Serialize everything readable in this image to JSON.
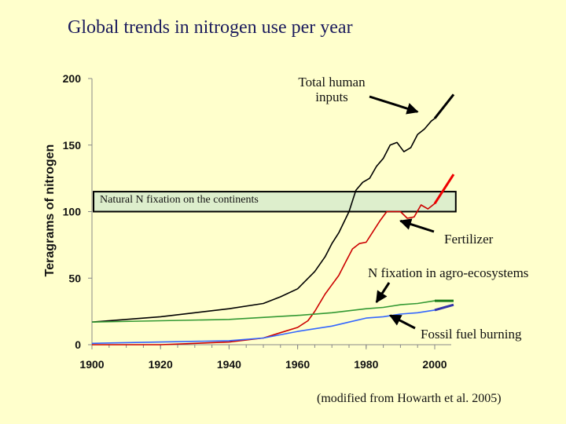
{
  "slide": {
    "title": "Global trends in nitrogen use per year",
    "citation": "(modified from Howarth et al. 2005)"
  },
  "chart_data": {
    "type": "line",
    "title": "Global trends in nitrogen use per year",
    "xlabel": "",
    "ylabel": "Teragrams of nitrogen",
    "xlim": [
      1900,
      2005
    ],
    "ylim": [
      0,
      200
    ],
    "x_ticks": [
      "1900",
      "1920",
      "1940",
      "1960",
      "1980",
      "2000"
    ],
    "y_ticks": [
      "0",
      "50",
      "100",
      "150",
      "200"
    ],
    "grid": false,
    "legend": "none",
    "series": [
      {
        "name": "Total human inputs",
        "color": "#000000",
        "points": [
          [
            1900,
            17
          ],
          [
            1910,
            19
          ],
          [
            1920,
            21
          ],
          [
            1930,
            24
          ],
          [
            1940,
            27
          ],
          [
            1950,
            31
          ],
          [
            1955,
            36
          ],
          [
            1960,
            42
          ],
          [
            1965,
            55
          ],
          [
            1968,
            66
          ],
          [
            1970,
            76
          ],
          [
            1972,
            84
          ],
          [
            1975,
            100
          ],
          [
            1977,
            116
          ],
          [
            1979,
            122
          ],
          [
            1981,
            125
          ],
          [
            1983,
            134
          ],
          [
            1985,
            140
          ],
          [
            1987,
            150
          ],
          [
            1989,
            152
          ],
          [
            1991,
            145
          ],
          [
            1993,
            148
          ],
          [
            1995,
            158
          ],
          [
            1997,
            162
          ],
          [
            1999,
            168
          ],
          [
            2000,
            170
          ]
        ]
      },
      {
        "name": "Fertilizer",
        "color": "#CC0000",
        "points": [
          [
            1900,
            0
          ],
          [
            1920,
            0
          ],
          [
            1940,
            2
          ],
          [
            1950,
            5
          ],
          [
            1955,
            9
          ],
          [
            1960,
            13
          ],
          [
            1963,
            18
          ],
          [
            1965,
            25
          ],
          [
            1968,
            38
          ],
          [
            1970,
            45
          ],
          [
            1972,
            52
          ],
          [
            1974,
            62
          ],
          [
            1976,
            72
          ],
          [
            1978,
            76
          ],
          [
            1980,
            77
          ],
          [
            1982,
            85
          ],
          [
            1984,
            93
          ],
          [
            1986,
            100
          ],
          [
            1988,
            100
          ],
          [
            1990,
            100
          ],
          [
            1992,
            95
          ],
          [
            1994,
            96
          ],
          [
            1996,
            105
          ],
          [
            1998,
            102
          ],
          [
            2000,
            106
          ]
        ]
      },
      {
        "name": "N fixation in agro-ecosystems",
        "color": "#339933",
        "points": [
          [
            1900,
            17
          ],
          [
            1920,
            18
          ],
          [
            1940,
            19
          ],
          [
            1960,
            22
          ],
          [
            1970,
            24
          ],
          [
            1980,
            27
          ],
          [
            1985,
            28
          ],
          [
            1990,
            30
          ],
          [
            1995,
            31
          ],
          [
            2000,
            33
          ]
        ]
      },
      {
        "name": "Fossil fuel burning",
        "color": "#3366FF",
        "points": [
          [
            1900,
            1
          ],
          [
            1920,
            2
          ],
          [
            1940,
            3
          ],
          [
            1950,
            5
          ],
          [
            1960,
            10
          ],
          [
            1970,
            14
          ],
          [
            1975,
            17
          ],
          [
            1980,
            20
          ],
          [
            1985,
            21
          ],
          [
            1990,
            23
          ],
          [
            1995,
            24
          ],
          [
            2000,
            26
          ]
        ]
      }
    ],
    "extensions": [
      {
        "series": "Total human inputs",
        "color": "#000000",
        "from": [
          2000,
          170
        ],
        "to": [
          2005,
          188
        ]
      },
      {
        "series": "Fertilizer",
        "color": "#EE0000",
        "from": [
          2000,
          106
        ],
        "to": [
          2005,
          128
        ]
      },
      {
        "series": "N fixation in agro-ecosystems",
        "color": "#1A7A1A",
        "from": [
          2000,
          33
        ],
        "to": [
          2005,
          33
        ]
      },
      {
        "series": "Fossil fuel burning",
        "color": "#3333AA",
        "from": [
          2000,
          26
        ],
        "to": [
          2005,
          30
        ]
      }
    ],
    "band": {
      "label": "Natural N fixation on the continents",
      "y_range": [
        100,
        115
      ],
      "x_range": [
        1900,
        2005
      ],
      "fill": "#DDEECC",
      "stroke": "#000000"
    },
    "annotations": [
      {
        "key": "total",
        "text_lines": [
          "Total human",
          "inputs"
        ],
        "target": [
          1995,
          175
        ]
      },
      {
        "key": "fertilizer",
        "text_lines": [
          "Fertilizer"
        ],
        "target": [
          1990,
          93
        ]
      },
      {
        "key": "nfix",
        "text_lines": [
          "N fixation in agro-ecosystems"
        ],
        "target": [
          1983,
          32
        ]
      },
      {
        "key": "fossil",
        "text_lines": [
          "Fossil fuel burning"
        ],
        "target": [
          1987,
          22
        ]
      }
    ]
  }
}
